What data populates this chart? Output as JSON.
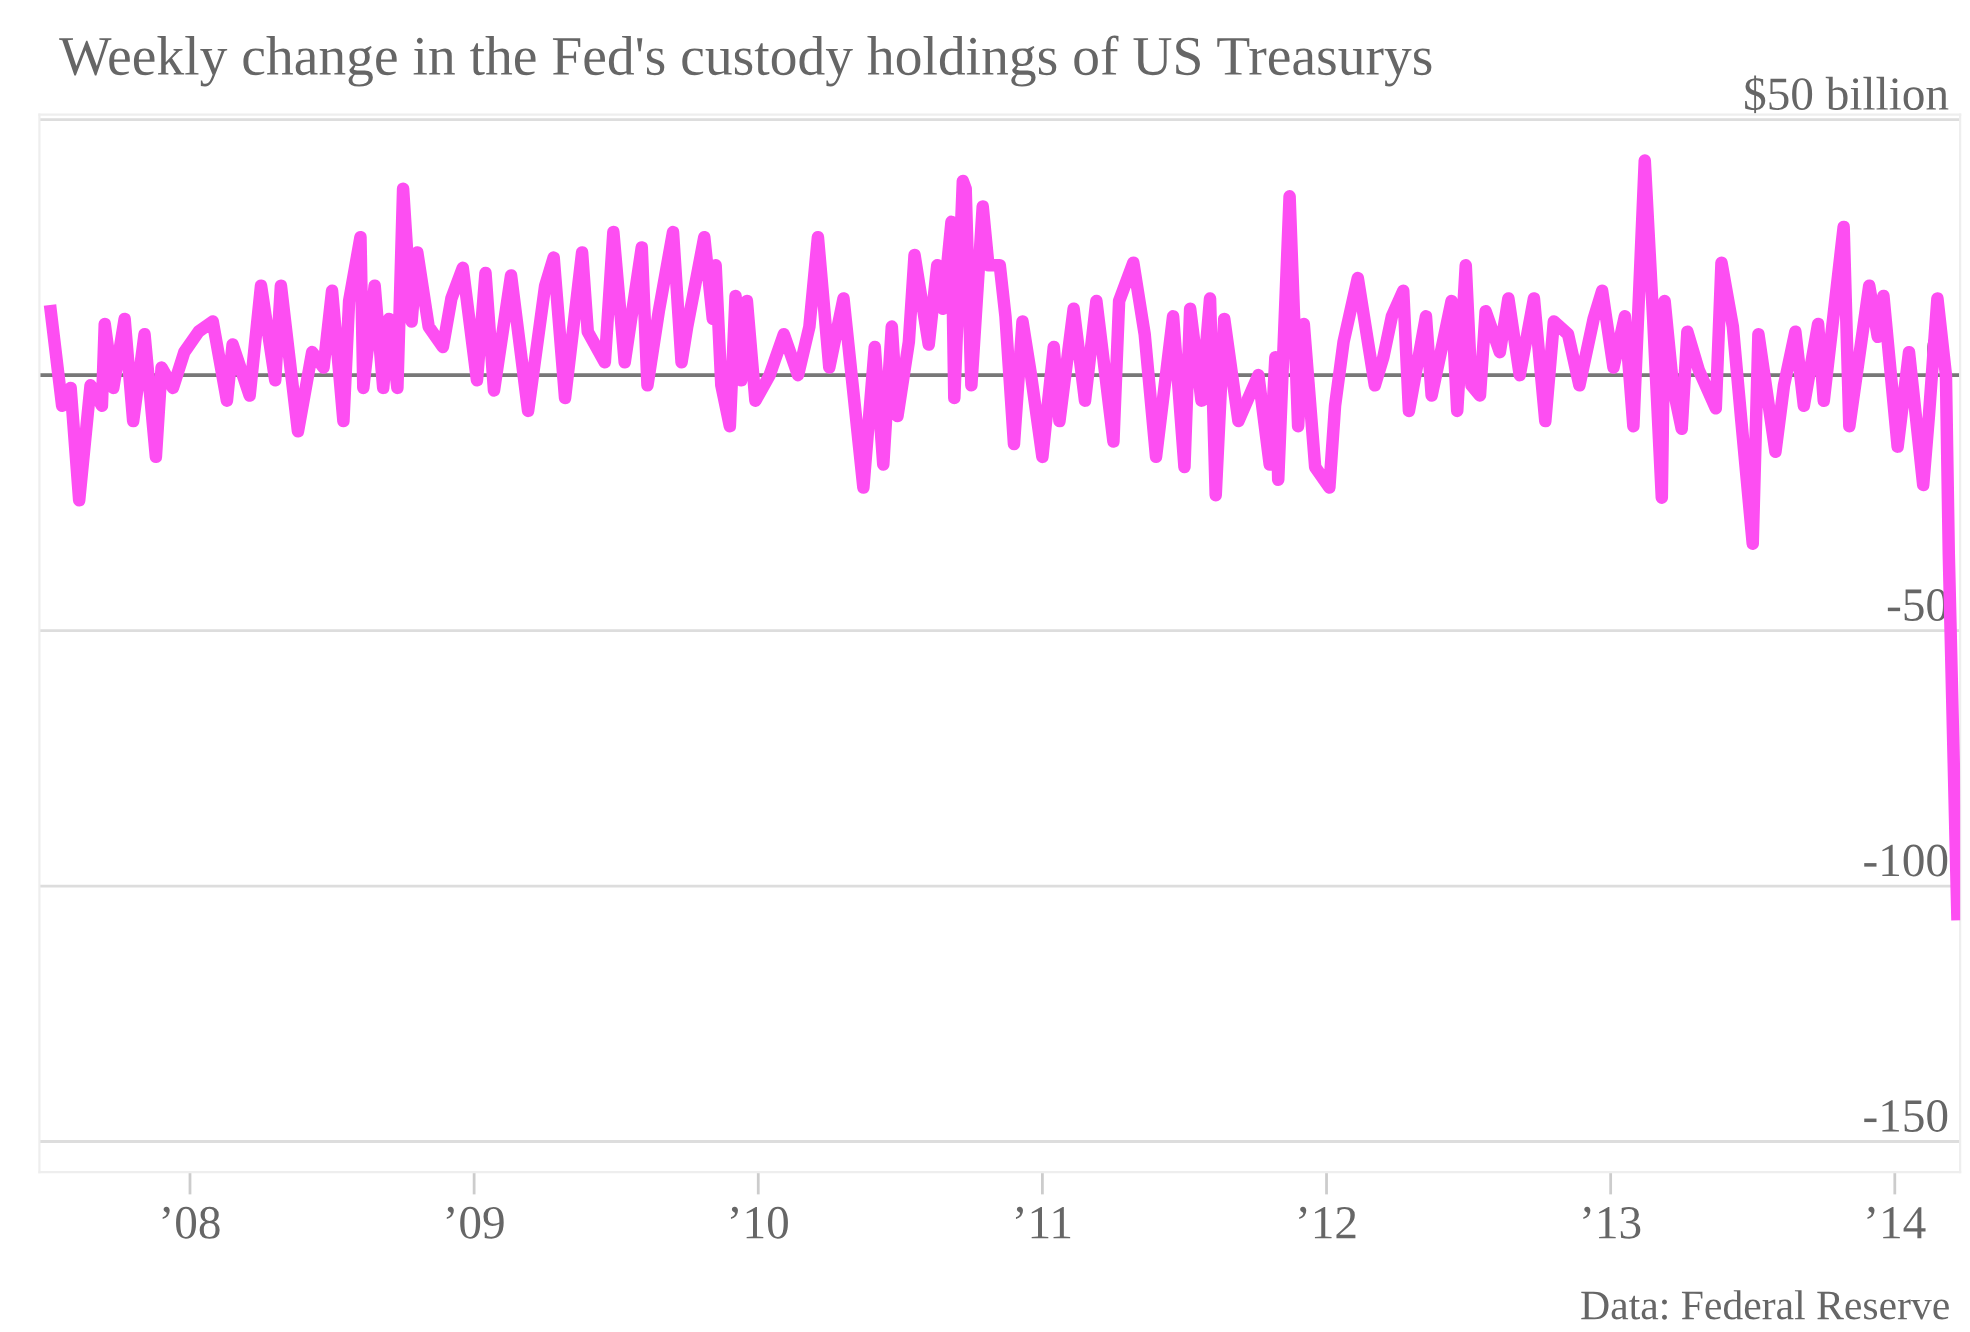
{
  "chart_data": {
    "type": "line",
    "title": "Weekly change in the Fed's custody holdings of US Treasurys",
    "annotations": [
      "Data: Federal Reserve"
    ],
    "x": [
      2007.51,
      2007.55,
      2007.58,
      2007.61,
      2007.65,
      2007.69,
      2007.7,
      2007.73,
      2007.77,
      2007.8,
      2007.84,
      2007.88,
      2007.9,
      2007.94,
      2007.98,
      2008.03,
      2008.08,
      2008.13,
      2008.15,
      2008.21,
      2008.25,
      2008.3,
      2008.32,
      2008.38,
      2008.43,
      2008.47,
      2008.5,
      2008.54,
      2008.56,
      2008.6,
      2008.61,
      2008.65,
      2008.68,
      2008.7,
      2008.73,
      2008.75,
      2008.78,
      2008.8,
      2008.84,
      2008.89,
      2008.92,
      2008.96,
      2009.01,
      2009.04,
      2009.07,
      2009.13,
      2009.19,
      2009.25,
      2009.28,
      2009.32,
      2009.38,
      2009.4,
      2009.46,
      2009.49,
      2009.53,
      2009.59,
      2009.61,
      2009.65,
      2009.7,
      2009.73,
      2009.75,
      2009.81,
      2009.84,
      2009.85,
      2009.87,
      2009.9,
      2009.92,
      2009.94,
      2009.96,
      2009.99,
      2010.04,
      2010.09,
      2010.14,
      2010.18,
      2010.21,
      2010.25,
      2010.3,
      2010.37,
      2010.41,
      2010.44,
      2010.47,
      2010.49,
      2010.53,
      2010.55,
      2010.6,
      2010.63,
      2010.65,
      2010.68,
      2010.69,
      2010.72,
      2010.73,
      2010.75,
      2010.79,
      2010.81,
      2010.85,
      2010.87,
      2010.9,
      2010.93,
      2010.96,
      2011.0,
      2011.04,
      2011.06,
      2011.11,
      2011.15,
      2011.19,
      2011.25,
      2011.27,
      2011.32,
      2011.36,
      2011.4,
      2011.46,
      2011.5,
      2011.52,
      2011.56,
      2011.59,
      2011.61,
      2011.64,
      2011.69,
      2011.76,
      2011.8,
      2011.82,
      2011.83,
      2011.87,
      2011.9,
      2011.92,
      2011.96,
      2012.01,
      2012.03,
      2012.06,
      2012.11,
      2012.17,
      2012.2,
      2012.23,
      2012.27,
      2012.29,
      2012.35,
      2012.37,
      2012.41,
      2012.44,
      2012.46,
      2012.49,
      2012.51,
      2012.54,
      2012.56,
      2012.61,
      2012.64,
      2012.68,
      2012.73,
      2012.77,
      2012.8,
      2012.85,
      2012.89,
      2012.94,
      2012.97,
      2013.01,
      2013.05,
      2013.08,
      2013.12,
      2013.15,
      2013.18,
      2013.19,
      2013.22,
      2013.25,
      2013.27,
      2013.31,
      2013.37,
      2013.39,
      2013.43,
      2013.46,
      2013.5,
      2013.52,
      2013.58,
      2013.61,
      2013.65,
      2013.68,
      2013.73,
      2013.75,
      2013.82,
      2013.84,
      2013.91,
      2013.94,
      2013.96,
      2014.01,
      2014.05,
      2014.1,
      2014.12,
      2014.15,
      2014.18,
      2014.19,
      2014.22
    ],
    "series": [
      {
        "color": "#fd4ef2",
        "values": [
          12.5,
          -6,
          -2.5,
          -24.5,
          -2,
          -6,
          10,
          -2.5,
          11,
          -9,
          8,
          -16,
          1.5,
          -2.5,
          4.5,
          8.5,
          10.5,
          -5,
          6,
          -4,
          17.5,
          -1,
          17.5,
          -11,
          4.5,
          1.5,
          16.5,
          -9,
          14.5,
          27,
          -2.5,
          17.5,
          -2.5,
          11,
          -2.5,
          36.5,
          10.5,
          24,
          9.5,
          5.5,
          15,
          21,
          -1,
          20,
          -3,
          19.5,
          -7,
          17.5,
          23,
          -4.5,
          24,
          8.5,
          2.5,
          28,
          2.5,
          25,
          -2,
          12.5,
          28,
          2.5,
          9.5,
          27,
          11,
          21.5,
          -2,
          -10,
          15.5,
          -1,
          14.5,
          -5,
          0,
          8,
          0,
          9.5,
          27,
          1.5,
          15,
          -22,
          5.5,
          -17.5,
          9.5,
          -8,
          6.5,
          23.5,
          6,
          21.5,
          13,
          30,
          -4.5,
          38,
          36.5,
          -2,
          33,
          21.5,
          21.5,
          11.5,
          -13.5,
          10.5,
          0,
          -16,
          5.5,
          -9,
          13,
          -5,
          14.5,
          -13,
          14.5,
          22,
          8,
          -16,
          11.5,
          -18,
          13,
          -5,
          15,
          -23.5,
          11,
          -9,
          0,
          -17.5,
          3.5,
          -20.5,
          35,
          -10,
          10,
          -18,
          -22,
          -6,
          6.5,
          19,
          -2,
          3.5,
          11.5,
          16.5,
          -7,
          11.5,
          -4,
          6.5,
          14.5,
          -7,
          21.5,
          -2,
          -4,
          12.5,
          4.5,
          15,
          0,
          15,
          -9,
          10.5,
          8,
          -2,
          11,
          16.5,
          1.5,
          11.5,
          -10,
          42,
          10.5,
          -24,
          14.5,
          -2.5,
          -10.5,
          8.5,
          1,
          -6.5,
          22,
          9.5,
          -9,
          -33,
          8,
          -15,
          -2,
          8.5,
          -6,
          10,
          -5,
          29,
          -10,
          17.5,
          7.5,
          15.5,
          -14,
          4.5,
          -21.5,
          -8,
          15,
          0,
          -35,
          -105.5
        ]
      }
    ],
    "xlim": [
      2007.47,
      2014.23
    ],
    "ylim": [
      -156,
      51
    ],
    "xticks": [
      {
        "value": 2008,
        "label": "’08"
      },
      {
        "value": 2009,
        "label": "’09"
      },
      {
        "value": 2010,
        "label": "’10"
      },
      {
        "value": 2011,
        "label": "’11"
      },
      {
        "value": 2012,
        "label": "’12"
      },
      {
        "value": 2013,
        "label": "’13"
      },
      {
        "value": 2014,
        "label": "’14"
      }
    ],
    "yticks": [
      {
        "value": 50,
        "label": "$50 billion"
      },
      0,
      -50,
      -100,
      -150
    ],
    "ref_lines": [
      {
        "axis": "y",
        "value": 0,
        "color": "#777777"
      }
    ],
    "grid": "y",
    "marker": "none",
    "line_style": "solid"
  }
}
